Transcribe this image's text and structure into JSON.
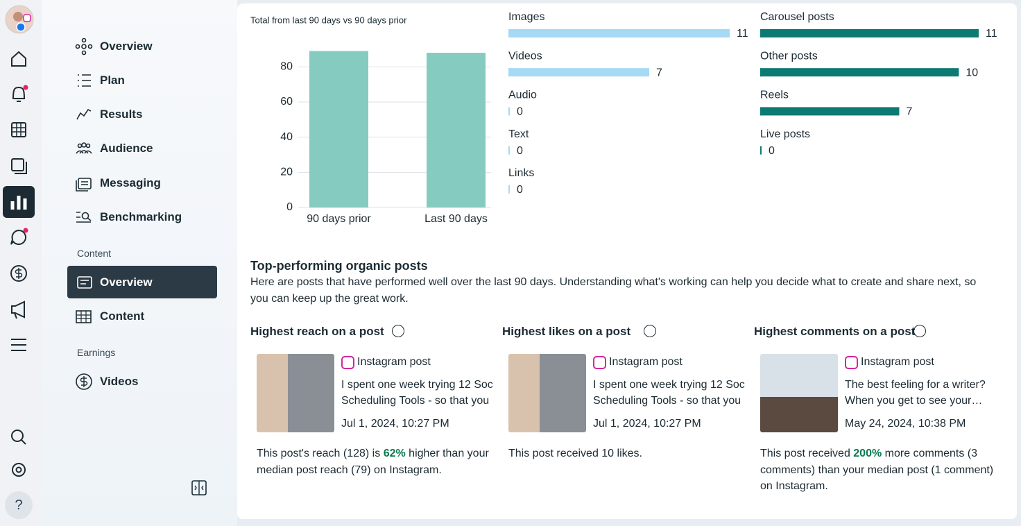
{
  "rail_help": "?",
  "nav": {
    "items": [
      "Overview",
      "Plan",
      "Results",
      "Audience",
      "Messaging",
      "Benchmarking"
    ],
    "content_label": "Content",
    "content_items": [
      "Overview",
      "Content"
    ],
    "earnings_label": "Earnings",
    "earnings_items": [
      "Videos"
    ]
  },
  "chart_data": [
    {
      "type": "bar",
      "subtitle": "Total from last 90 days vs 90 days prior",
      "categories": [
        "90 days prior",
        "Last 90 days"
      ],
      "values": [
        89,
        88
      ],
      "color": "#85cbbf",
      "ylim": [
        0,
        90
      ],
      "yticks": [
        0,
        20,
        40,
        60,
        80
      ],
      "grid": true
    },
    {
      "type": "barh",
      "categories": [
        "Images",
        "Videos",
        "Audio",
        "Text",
        "Links"
      ],
      "values": [
        11,
        7,
        0,
        0,
        0
      ],
      "color": "#a6d9f3",
      "xlim": [
        0,
        11
      ]
    },
    {
      "type": "barh",
      "categories": [
        "Carousel posts",
        "Other posts",
        "Reels",
        "Live posts"
      ],
      "values": [
        11,
        10,
        7,
        0
      ],
      "color": "#0a7a72",
      "xlim": [
        0,
        11
      ]
    }
  ],
  "top_posts": {
    "title": "Top-performing organic posts",
    "description": "Here are posts that have performed well over the last 90 days. Understanding what's working can help you decide what to create and share next, so you can keep up the great work.",
    "cards": [
      {
        "title": "Highest reach on a post",
        "source": "Instagram post",
        "caption": [
          "I spent one week trying 12 Soc",
          "Scheduling Tools - so that you"
        ],
        "date": "Jul 1, 2024, 10:27 PM",
        "text": [
          "This post's reach (128) is ",
          "62%",
          " higher than your median post reach (79) on Instagram."
        ]
      },
      {
        "title": "Highest likes on a post",
        "source": "Instagram post",
        "caption": [
          "I spent one week trying 12 Soc",
          "Scheduling Tools - so that you"
        ],
        "date": "Jul 1, 2024, 10:27 PM",
        "text": [
          "This post received 10 likes."
        ]
      },
      {
        "title": "Highest comments on a post",
        "source": "Instagram post",
        "caption": [
          "The best feeling for a writer?",
          "When you get to see your…"
        ],
        "date": "May 24, 2024, 10:38 PM",
        "text": [
          "This post received ",
          "200%",
          " more comments (3 comments) than your median post (1 comment) on Instagram."
        ]
      }
    ]
  }
}
